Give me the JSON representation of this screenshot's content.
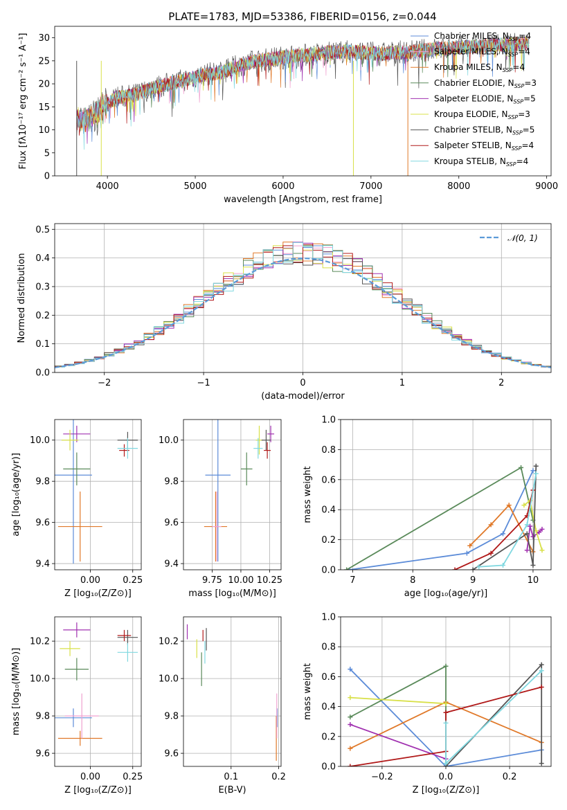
{
  "title": "PLATE=1783, MJD=53386, FIBERID=0156, z=0.044",
  "colors": {
    "chabrier_miles": "#5b8bd8",
    "salpeter_miles": "#f0a0d0",
    "kroupa_miles": "#e07828",
    "chabrier_elodie": "#5a8a5a",
    "salpeter_elodie": "#a030b0",
    "kroupa_elodie": "#d8e048",
    "chabrier_stelib": "#555555",
    "salpeter_stelib": "#b01818",
    "kroupa_stelib": "#80d8e0"
  },
  "chart_data": [
    {
      "id": "spectrum",
      "type": "line",
      "xlabel": "wavelength [Angstrom, rest frame]",
      "ylabel": "Flux [fλ10⁻¹⁷ erg cm⁻² s⁻¹ A⁻¹]",
      "xlim": [
        3400,
        9050
      ],
      "ylim": [
        0,
        32.5
      ],
      "xticks": [
        "4000",
        "5000",
        "6000",
        "7000",
        "8000",
        "9000"
      ],
      "yticks": [
        "0",
        "5",
        "10",
        "15",
        "20",
        "25",
        "30"
      ],
      "grid": false,
      "legend_position": "top-right",
      "continuum": [
        [
          3650,
          12
        ],
        [
          3800,
          12.5
        ],
        [
          3950,
          15
        ],
        [
          4100,
          17
        ],
        [
          4300,
          17.5
        ],
        [
          4500,
          19
        ],
        [
          4700,
          20
        ],
        [
          4900,
          21
        ],
        [
          5100,
          22
        ],
        [
          5300,
          22.5
        ],
        [
          5500,
          24
        ],
        [
          5700,
          25
        ],
        [
          5900,
          25.5
        ],
        [
          6100,
          26
        ],
        [
          6300,
          26.3
        ],
        [
          6500,
          26.8
        ],
        [
          6700,
          27
        ],
        [
          6900,
          26.8
        ],
        [
          7100,
          26.5
        ],
        [
          7300,
          26.8
        ],
        [
          7500,
          27
        ],
        [
          7700,
          27.5
        ],
        [
          7900,
          27.8
        ],
        [
          8100,
          28
        ],
        [
          8300,
          28.3
        ],
        [
          8500,
          28.5
        ],
        [
          8800,
          28.8
        ]
      ],
      "series": [
        {
          "name": "Chabrier MILES, N$_{SSP}$=4",
          "label_main": "Chabrier MILES, N",
          "label_sub": "SSP",
          "label_tail": "=4",
          "color": "#5b8bd8"
        },
        {
          "name": "Salpeter MILES, N$_{SSP}$=4",
          "label_main": "Salpeter MILES, N",
          "label_sub": "SSP",
          "label_tail": "=4",
          "color": "#f0a0d0"
        },
        {
          "name": "Kroupa MILES, N$_{SSP}$=4",
          "label_main": "Kroupa MILES, N",
          "label_sub": "SSP",
          "label_tail": "=4",
          "color": "#e07828"
        },
        {
          "name": "Chabrier ELODIE, N$_{SSP}$=3",
          "label_main": "Chabrier ELODIE, N",
          "label_sub": "SSP",
          "label_tail": "=3",
          "color": "#5a8a5a"
        },
        {
          "name": "Salpeter ELODIE, N$_{SSP}$=5",
          "label_main": "Salpeter ELODIE, N",
          "label_sub": "SSP",
          "label_tail": "=5",
          "color": "#a030b0"
        },
        {
          "name": "Kroupa ELODIE, N$_{SSP}$=3",
          "label_main": "Kroupa ELODIE, N",
          "label_sub": "SSP",
          "label_tail": "=3",
          "color": "#d8e048"
        },
        {
          "name": "Chabrier STELIB, N$_{SSP}$=5",
          "label_main": "Chabrier STELIB, N",
          "label_sub": "SSP",
          "label_tail": "=5",
          "color": "#555555"
        },
        {
          "name": "Salpeter STELIB, N$_{SSP}$=4",
          "label_main": "Salpeter STELIB, N",
          "label_sub": "SSP",
          "label_tail": "=4",
          "color": "#b01818"
        },
        {
          "name": "Kroupa STELIB, N$_{SSP}$=4",
          "label_main": "Kroupa STELIB, N",
          "label_sub": "SSP",
          "label_tail": "=4",
          "color": "#80d8e0"
        }
      ]
    },
    {
      "id": "residuals",
      "type": "line",
      "xlabel": "(data-model)/error",
      "ylabel": "Normed distribution",
      "xlim": [
        -2.5,
        2.5
      ],
      "ylim": [
        0,
        0.52
      ],
      "xticks": [
        "−2",
        "−1",
        "0",
        "1",
        "2"
      ],
      "yticks": [
        "0.0",
        "0.1",
        "0.2",
        "0.3",
        "0.4",
        "0.5"
      ],
      "grid": true,
      "legend": "𝒩(0, 1)",
      "legend_position": "top-right",
      "bin_width": 0.1,
      "reference_curve": "normal(0,1)"
    },
    {
      "id": "age_vs_Z",
      "type": "scatter",
      "xlabel": "Z [log₁₀(Z/Z⊙)]",
      "ylabel": "age  [log₁₀(age/yr)]",
      "xlim": [
        -0.21,
        0.3
      ],
      "ylim": [
        9.37,
        10.1
      ],
      "xticks": [
        "0.00",
        "0.25"
      ],
      "yticks": [
        "9.4",
        "9.6",
        "9.8",
        "10.0"
      ],
      "grid": true,
      "points": [
        {
          "x": -0.1,
          "y": 9.83,
          "xerr": 0.11,
          "yerr": 0.43,
          "color": "#5b8bd8"
        },
        {
          "x": -0.06,
          "y": 9.58,
          "xerr": 0.13,
          "yerr": 0.17,
          "color": "#e07828"
        },
        {
          "x": -0.08,
          "y": 9.86,
          "xerr": 0.08,
          "yerr": 0.08,
          "color": "#5a8a5a"
        },
        {
          "x": -0.08,
          "y": 10.03,
          "xerr": 0.08,
          "yerr": 0.04,
          "color": "#a030b0"
        },
        {
          "x": -0.12,
          "y": 10.0,
          "xerr": 0.05,
          "yerr": 0.05,
          "color": "#d8e048"
        },
        {
          "x": 0.22,
          "y": 10.0,
          "xerr": 0.06,
          "yerr": 0.04,
          "color": "#555555"
        },
        {
          "x": 0.2,
          "y": 9.95,
          "xerr": 0.03,
          "yerr": 0.03,
          "color": "#b01818"
        },
        {
          "x": 0.22,
          "y": 9.96,
          "xerr": 0.06,
          "yerr": 0.05,
          "color": "#80d8e0"
        }
      ]
    },
    {
      "id": "age_vs_mass",
      "type": "scatter",
      "xlabel": "mass [log₁₀(M/M⊙)]",
      "xlim": [
        9.5,
        10.35
      ],
      "ylim": [
        9.37,
        10.1
      ],
      "xticks": [
        "9.75",
        "10.00",
        "10.25"
      ],
      "yticks": [
        "9.4",
        "9.6",
        "9.8",
        "10.0"
      ],
      "grid": true,
      "points": [
        {
          "x": 9.8,
          "y": 9.83,
          "xerr": 0.11,
          "yerr": 0.42,
          "color": "#5b8bd8"
        },
        {
          "x": 9.78,
          "y": 9.58,
          "xerr": 0.1,
          "yerr": 0.17,
          "color": "#e07828"
        },
        {
          "x": 9.79,
          "y": 9.58,
          "xerr": 0.04,
          "yerr": 0.17,
          "color": "#f0a0d0"
        },
        {
          "x": 10.05,
          "y": 9.86,
          "xerr": 0.05,
          "yerr": 0.08,
          "color": "#5a8a5a"
        },
        {
          "x": 10.26,
          "y": 10.03,
          "xerr": 0.03,
          "yerr": 0.04,
          "color": "#a030b0"
        },
        {
          "x": 10.16,
          "y": 10.0,
          "xerr": 0.03,
          "yerr": 0.07,
          "color": "#d8e048"
        },
        {
          "x": 10.22,
          "y": 10.0,
          "xerr": 0.04,
          "yerr": 0.05,
          "color": "#555555"
        },
        {
          "x": 10.23,
          "y": 9.95,
          "xerr": 0.03,
          "yerr": 0.04,
          "color": "#b01818"
        },
        {
          "x": 10.15,
          "y": 9.96,
          "xerr": 0.04,
          "yerr": 0.05,
          "color": "#80d8e0"
        }
      ]
    },
    {
      "id": "weight_vs_age",
      "type": "line",
      "xlabel": "age  [log₁₀(age/yr)]",
      "ylabel": "mass weight",
      "xlim": [
        6.8,
        10.3
      ],
      "ylim": [
        0,
        1.0
      ],
      "xticks": [
        "7",
        "8",
        "9",
        "10"
      ],
      "yticks": [
        "0.0",
        "0.2",
        "0.4",
        "0.6",
        "0.8",
        "1.0"
      ],
      "grid": true,
      "series": [
        {
          "color": "#5b8bd8",
          "x": [
            6.95,
            8.9,
            9.5,
            10.0
          ],
          "y": [
            0.0,
            0.11,
            0.24,
            0.66
          ]
        },
        {
          "color": "#e07828",
          "x": [
            8.95,
            9.3,
            9.6,
            10.0
          ],
          "y": [
            0.16,
            0.3,
            0.43,
            0.12
          ]
        },
        {
          "color": "#5a8a5a",
          "x": [
            6.9,
            9.8,
            10.0
          ],
          "y": [
            0.0,
            0.68,
            0.33
          ]
        },
        {
          "color": "#a030b0",
          "x": [
            9.9,
            9.95,
            10.0,
            10.1,
            10.15
          ],
          "y": [
            0.13,
            0.29,
            0.22,
            0.25,
            0.27
          ]
        },
        {
          "color": "#d8e048",
          "x": [
            9.85,
            9.95,
            10.05,
            10.15
          ],
          "y": [
            0.43,
            0.46,
            0.26,
            0.13
          ]
        },
        {
          "color": "#555555",
          "x": [
            9.0,
            9.9,
            10.0,
            10.05
          ],
          "y": [
            0.0,
            0.24,
            0.03,
            0.69
          ]
        },
        {
          "color": "#b01818",
          "x": [
            8.7,
            9.3,
            9.9,
            10.0
          ],
          "y": [
            0.0,
            0.11,
            0.36,
            0.53
          ]
        },
        {
          "color": "#80d8e0",
          "x": [
            9.1,
            9.5,
            9.9,
            10.05
          ],
          "y": [
            0.02,
            0.03,
            0.3,
            0.64
          ]
        }
      ]
    },
    {
      "id": "mass_vs_Z",
      "type": "scatter",
      "xlabel": "Z [log₁₀(Z/Z⊙)]",
      "ylabel": "mass [log₁₀(M/M⊙)]",
      "xlim": [
        -0.21,
        0.3
      ],
      "ylim": [
        9.53,
        10.33
      ],
      "xticks": [
        "0.00",
        "0.25"
      ],
      "yticks": [
        "9.6",
        "9.8",
        "10.0",
        "10.2"
      ],
      "grid": true,
      "points": [
        {
          "x": -0.1,
          "y": 9.79,
          "xerr": 0.11,
          "yerr": 0.05,
          "color": "#5b8bd8"
        },
        {
          "x": -0.06,
          "y": 9.68,
          "xerr": 0.13,
          "yerr": 0.04,
          "color": "#e07828"
        },
        {
          "x": -0.05,
          "y": 9.8,
          "xerr": 0.1,
          "yerr": 0.12,
          "color": "#f0a0d0"
        },
        {
          "x": -0.08,
          "y": 10.05,
          "xerr": 0.07,
          "yerr": 0.06,
          "color": "#5a8a5a"
        },
        {
          "x": -0.08,
          "y": 10.26,
          "xerr": 0.08,
          "yerr": 0.04,
          "color": "#a030b0"
        },
        {
          "x": -0.12,
          "y": 10.16,
          "xerr": 0.06,
          "yerr": 0.04,
          "color": "#d8e048"
        },
        {
          "x": 0.22,
          "y": 10.22,
          "xerr": 0.06,
          "yerr": 0.04,
          "color": "#555555"
        },
        {
          "x": 0.2,
          "y": 10.23,
          "xerr": 0.04,
          "yerr": 0.03,
          "color": "#b01818"
        },
        {
          "x": 0.22,
          "y": 10.14,
          "xerr": 0.06,
          "yerr": 0.05,
          "color": "#80d8e0"
        }
      ]
    },
    {
      "id": "mass_vs_ebv",
      "type": "scatter",
      "xlabel": "E(B-V)",
      "xlim": [
        0,
        0.205
      ],
      "ylim": [
        9.53,
        10.33
      ],
      "xticks": [
        "0.1",
        "0.2"
      ],
      "yticks": [
        "9.6",
        "9.8",
        "10.0",
        "10.2"
      ],
      "grid": true,
      "points": [
        {
          "x": 0.197,
          "y": 9.79,
          "xerr": 0,
          "yerr": 0.05,
          "color": "#5b8bd8"
        },
        {
          "x": 0.195,
          "y": 9.68,
          "xerr": 0,
          "yerr": 0.12,
          "color": "#e07828"
        },
        {
          "x": 0.196,
          "y": 9.8,
          "xerr": 0,
          "yerr": 0.12,
          "color": "#f0a0d0"
        },
        {
          "x": 0.038,
          "y": 10.05,
          "xerr": 0,
          "yerr": 0.09,
          "color": "#5a8a5a"
        },
        {
          "x": 0.008,
          "y": 10.25,
          "xerr": 0,
          "yerr": 0.04,
          "color": "#a030b0"
        },
        {
          "x": 0.028,
          "y": 10.16,
          "xerr": 0,
          "yerr": 0.05,
          "color": "#d8e048"
        },
        {
          "x": 0.048,
          "y": 10.21,
          "xerr": 0,
          "yerr": 0.06,
          "color": "#555555"
        },
        {
          "x": 0.041,
          "y": 10.23,
          "xerr": 0,
          "yerr": 0.03,
          "color": "#b01818"
        },
        {
          "x": 0.045,
          "y": 10.14,
          "xerr": 0,
          "yerr": 0.06,
          "color": "#80d8e0"
        }
      ]
    },
    {
      "id": "weight_vs_Z",
      "type": "line",
      "xlabel": "Z [log₁₀(Z/Z⊙)]",
      "ylabel": "mass weight",
      "xlim": [
        -0.33,
        0.33
      ],
      "ylim": [
        0,
        1.0
      ],
      "xticks": [
        "−0.2",
        "0.0",
        "0.2"
      ],
      "yticks": [
        "0.0",
        "0.2",
        "0.4",
        "0.6",
        "0.8",
        "1.0"
      ],
      "grid": true,
      "series": [
        {
          "color": "#5b8bd8",
          "x": [
            -0.3,
            0.0,
            0.3
          ],
          "y": [
            0.65,
            0.0,
            0.11
          ]
        },
        {
          "color": "#e07828",
          "x": [
            -0.3,
            0.0,
            0.3
          ],
          "y": [
            0.12,
            0.43,
            0.16
          ]
        },
        {
          "color": "#5a8a5a",
          "x": [
            -0.3,
            0.0,
            0.0
          ],
          "y": [
            0.33,
            0.67,
            0.02
          ]
        },
        {
          "color": "#a030b0",
          "x": [
            -0.3,
            0.0
          ],
          "y": [
            0.28,
            0.05
          ]
        },
        {
          "color": "#d8e048",
          "x": [
            -0.3,
            0.0
          ],
          "y": [
            0.46,
            0.42
          ]
        },
        {
          "color": "#555555",
          "x": [
            0.0,
            0.3,
            0.3
          ],
          "y": [
            0.0,
            0.68,
            0.02
          ]
        },
        {
          "color": "#b01818",
          "x": [
            -0.3,
            0.0,
            0.0,
            0.3
          ],
          "y": [
            0.0,
            0.1,
            0.36,
            0.53
          ]
        },
        {
          "color": "#80d8e0",
          "x": [
            0.0,
            0.0,
            0.3
          ],
          "y": [
            0.29,
            0.02,
            0.64
          ]
        }
      ]
    }
  ]
}
